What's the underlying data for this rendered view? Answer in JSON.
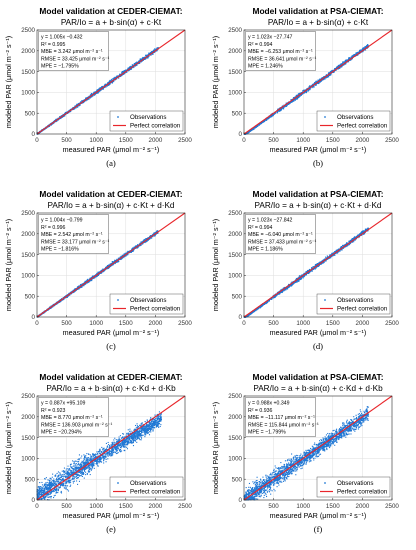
{
  "chart_data": [
    {
      "type": "scatter",
      "title": "Model validation at CEDER-CIEMAT:",
      "model": "PAR/Io = a + b·sin(α) + c·Kt",
      "xlabel": "measured PAR (μmol m⁻² s⁻¹)",
      "ylabel": "modeled PAR (μmol m⁻² s⁻¹)",
      "xlim": [
        0,
        2500
      ],
      "ylim": [
        0,
        2500
      ],
      "xticks": [
        "0",
        "500",
        "1000",
        "1500",
        "2000",
        "2500"
      ],
      "yticks": [
        "0",
        "500",
        "1000",
        "1500",
        "2000",
        "2500"
      ],
      "grid": true,
      "legend_position": "bottom-right",
      "stats": [
        "y = 1.005x −0.432",
        "R² = 0.995",
        "MBE = 3.242 μmol m⁻² s⁻¹",
        "RMSE = 33.425 μmol m⁻² s⁻¹",
        "MPE = −1.795%"
      ],
      "fit": {
        "slope": 1.005,
        "intercept": -0.432
      },
      "scatter_spread": 60,
      "x_range": [
        0,
        2050
      ],
      "series": [
        {
          "name": "Observations",
          "color": "#1f77d4"
        },
        {
          "name": "Perfect correlation",
          "color": "#e8262b",
          "x": [
            0,
            2500
          ],
          "y": [
            0,
            2500
          ]
        }
      ],
      "caption": "(a)"
    },
    {
      "type": "scatter",
      "title": "Model validation at PSA-CIEMAT:",
      "model": "PAR/Io = a + b·sin(α) + c·Kt",
      "xlabel": "measured PAR (μmol m⁻² s⁻¹)",
      "ylabel": "modeled PAR (μmol m⁻² s⁻¹)",
      "xlim": [
        0,
        2500
      ],
      "ylim": [
        0,
        2500
      ],
      "xticks": [
        "0",
        "500",
        "1000",
        "1500",
        "2000",
        "2500"
      ],
      "yticks": [
        "0",
        "500",
        "1000",
        "1500",
        "2000",
        "2500"
      ],
      "grid": true,
      "legend_position": "bottom-right",
      "stats": [
        "y = 1.023x −27.747",
        "R² = 0.994",
        "MBE = −6.253 μmol m⁻² s⁻¹",
        "RMSE = 36.641 μmol m⁻² s⁻¹",
        "MPE = 1.246%"
      ],
      "fit": {
        "slope": 1.023,
        "intercept": -27.747
      },
      "scatter_spread": 65,
      "x_range": [
        0,
        2100
      ],
      "series": [
        {
          "name": "Observations",
          "color": "#1f77d4"
        },
        {
          "name": "Perfect correlation",
          "color": "#e8262b",
          "x": [
            0,
            2500
          ],
          "y": [
            0,
            2500
          ]
        }
      ],
      "caption": "(b)"
    },
    {
      "type": "scatter",
      "title": "Model validation at CEDER-CIEMAT:",
      "model": "PAR/Io = a + b·sin(α) + c·Kt + d·Kd",
      "xlabel": "measured PAR (μmol m⁻² s⁻¹)",
      "ylabel": "modeled PAR (μmol m⁻² s⁻¹)",
      "xlim": [
        0,
        2500
      ],
      "ylim": [
        0,
        2500
      ],
      "xticks": [
        "0",
        "500",
        "1000",
        "1500",
        "2000",
        "2500"
      ],
      "yticks": [
        "0",
        "500",
        "1000",
        "1500",
        "2000",
        "2500"
      ],
      "grid": true,
      "legend_position": "bottom-right",
      "stats": [
        "y = 1.004x −0.799",
        "R² = 0.996",
        "MBE = 2.542 μmol m⁻² s⁻¹",
        "RMSE = 33.177 μmol m⁻² s⁻¹",
        "MPE = −1.816%"
      ],
      "fit": {
        "slope": 1.004,
        "intercept": -0.799
      },
      "scatter_spread": 60,
      "x_range": [
        0,
        2050
      ],
      "series": [
        {
          "name": "Observations",
          "color": "#1f77d4"
        },
        {
          "name": "Perfect correlation",
          "color": "#e8262b",
          "x": [
            0,
            2500
          ],
          "y": [
            0,
            2500
          ]
        }
      ],
      "caption": "(c)"
    },
    {
      "type": "scatter",
      "title": "Model validation at PSA-CIEMAT:",
      "model": "PAR/Io = a + b·sin(α) + c·Kt + d·Kd",
      "xlabel": "measured PAR (μmol m⁻² s⁻¹)",
      "ylabel": "modeled PAR (μmol m⁻² s⁻¹)",
      "xlim": [
        0,
        2500
      ],
      "ylim": [
        0,
        2500
      ],
      "xticks": [
        "0",
        "500",
        "1000",
        "1500",
        "2000",
        "2500"
      ],
      "yticks": [
        "0",
        "500",
        "1000",
        "1500",
        "2000",
        "2500"
      ],
      "grid": true,
      "legend_position": "bottom-right",
      "stats": [
        "y = 1.023x −27.842",
        "R² = 0.994",
        "MBE = −6.040 μmol m⁻² s⁻¹",
        "RMSE = 37.433 μmol m⁻² s⁻¹",
        "MPE = 1.186%"
      ],
      "fit": {
        "slope": 1.023,
        "intercept": -27.842
      },
      "scatter_spread": 65,
      "x_range": [
        0,
        2100
      ],
      "series": [
        {
          "name": "Observations",
          "color": "#1f77d4"
        },
        {
          "name": "Perfect correlation",
          "color": "#e8262b",
          "x": [
            0,
            2500
          ],
          "y": [
            0,
            2500
          ]
        }
      ],
      "caption": "(d)"
    },
    {
      "type": "scatter",
      "title": "Model validation at CEDER-CIEMAT:",
      "model": "PAR/Io = a + b·sin(α) + c·Kd + d·Kb",
      "xlabel": "measured PAR (μmol m⁻² s⁻¹)",
      "ylabel": "modeled PAR (μmol m⁻² s⁻¹)",
      "xlim": [
        0,
        2500
      ],
      "ylim": [
        0,
        2500
      ],
      "xticks": [
        "0",
        "500",
        "1000",
        "1500",
        "2000",
        "2500"
      ],
      "yticks": [
        "0",
        "500",
        "1000",
        "1500",
        "2000",
        "2500"
      ],
      "grid": true,
      "legend_position": "bottom-right",
      "stats": [
        "y = 0.887x +95.109",
        "R² = 0.923",
        "MBE = 8.770 μmol m⁻² s⁻¹",
        "RMSE = 136.903 μmol m⁻² s⁻¹",
        "MPE = −20.294%"
      ],
      "fit": {
        "slope": 0.887,
        "intercept": 95.109
      },
      "scatter_spread": 260,
      "x_range": [
        0,
        2100
      ],
      "series": [
        {
          "name": "Observations",
          "color": "#1f77d4"
        },
        {
          "name": "Perfect correlation",
          "color": "#e8262b",
          "x": [
            0,
            2500
          ],
          "y": [
            0,
            2500
          ]
        }
      ],
      "caption": "(e)"
    },
    {
      "type": "scatter",
      "title": "Model validation at PSA-CIEMAT:",
      "model": "PAR/Io = a + b·sin(α) + c·Kd + d·Kb",
      "xlabel": "measured PAR (μmol m⁻² s⁻¹)",
      "ylabel": "modeled PAR (μmol m⁻² s⁻¹)",
      "xlim": [
        0,
        2500
      ],
      "ylim": [
        0,
        2500
      ],
      "xticks": [
        "0",
        "500",
        "1000",
        "1500",
        "2000",
        "2500"
      ],
      "yticks": [
        "0",
        "500",
        "1000",
        "1500",
        "2000",
        "2500"
      ],
      "grid": true,
      "legend_position": "bottom-right",
      "stats": [
        "y = 0.988x +0.349",
        "R² = 0.936",
        "MBE = −11.117 μmol m⁻² s⁻¹",
        "RMSE = 115.844 μmol m⁻² s⁻¹",
        "MPE = −1.799%"
      ],
      "fit": {
        "slope": 0.988,
        "intercept": 0.349
      },
      "scatter_spread": 240,
      "x_range": [
        0,
        2100
      ],
      "series": [
        {
          "name": "Observations",
          "color": "#1f77d4"
        },
        {
          "name": "Perfect correlation",
          "color": "#e8262b",
          "x": [
            0,
            2500
          ],
          "y": [
            0,
            2500
          ]
        }
      ],
      "caption": "(f)"
    }
  ]
}
